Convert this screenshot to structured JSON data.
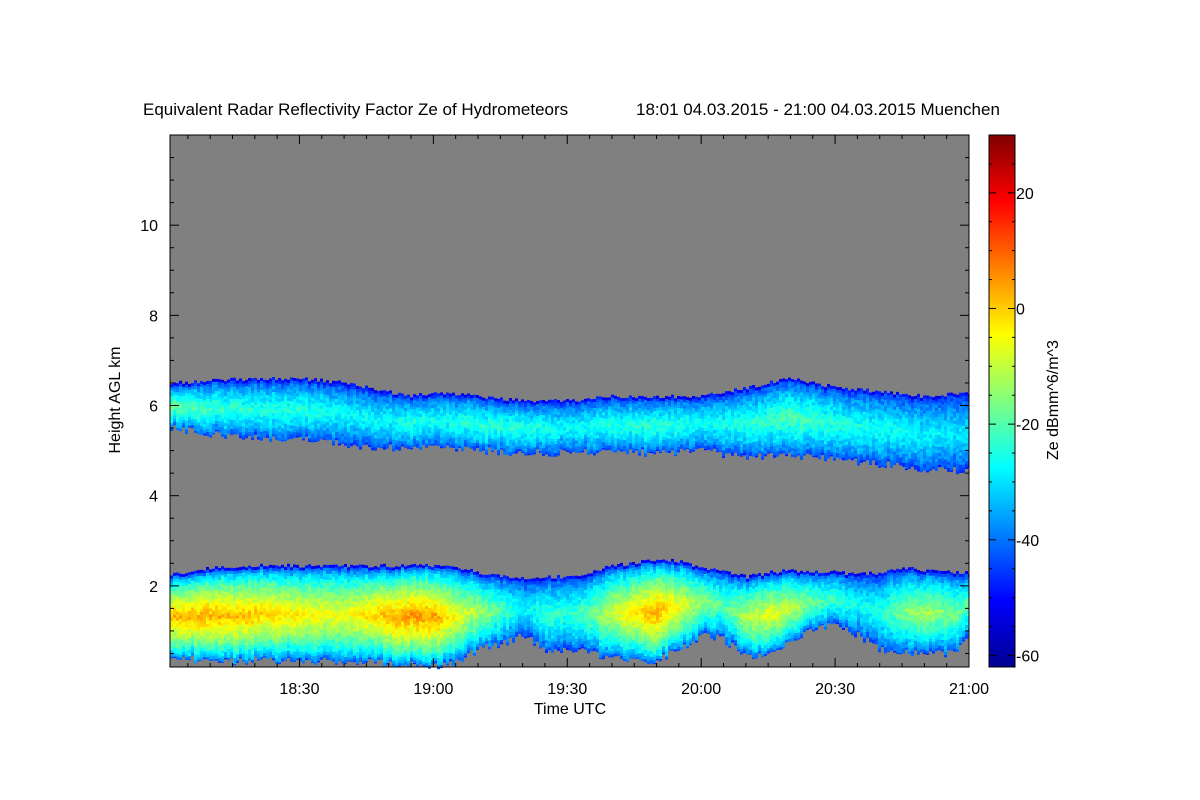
{
  "chart_data": {
    "type": "heatmap",
    "title": "Equivalent Radar Reflectivity Factor Ze of Hydrometeors",
    "subtitle": "18:01 04.03.2015 - 21:00 04.03.2015 Muenchen",
    "xlabel": "Time UTC",
    "ylabel": "Height AGL km",
    "colorbar_label": "Ze dBmm^6/m^3",
    "x_range_minutes": [
      1081,
      1260
    ],
    "y_range_km": [
      0.2,
      12.0
    ],
    "x_ticks": [
      {
        "minutes": 1110,
        "label": "18:30"
      },
      {
        "minutes": 1140,
        "label": "19:00"
      },
      {
        "minutes": 1170,
        "label": "19:30"
      },
      {
        "minutes": 1200,
        "label": "20:00"
      },
      {
        "minutes": 1230,
        "label": "20:30"
      },
      {
        "minutes": 1260,
        "label": "21:00"
      }
    ],
    "y_ticks": [
      {
        "value": 2,
        "label": "2"
      },
      {
        "value": 4,
        "label": "4"
      },
      {
        "value": 6,
        "label": "6"
      },
      {
        "value": 8,
        "label": "8"
      },
      {
        "value": 10,
        "label": "10"
      }
    ],
    "colorbar_range": [
      -62,
      30
    ],
    "colorbar_ticks": [
      {
        "value": 20,
        "label": "20"
      },
      {
        "value": 0,
        "label": "0"
      },
      {
        "value": -20,
        "label": "-20"
      },
      {
        "value": -40,
        "label": "-40"
      },
      {
        "value": -60,
        "label": "-60"
      }
    ],
    "colormap": "jet",
    "background_color": "#808080",
    "layers": [
      {
        "name": "upper",
        "time_minutes": [
          1081,
          1090,
          1100,
          1110,
          1120,
          1130,
          1135,
          1140,
          1150,
          1160,
          1170,
          1180,
          1190,
          1200,
          1210,
          1220,
          1225,
          1230,
          1240,
          1250,
          1260
        ],
        "top_km": [
          6.5,
          6.55,
          6.6,
          6.6,
          6.5,
          6.3,
          6.2,
          6.3,
          6.2,
          6.1,
          6.1,
          6.2,
          6.2,
          6.2,
          6.4,
          6.6,
          6.5,
          6.4,
          6.3,
          6.2,
          6.3
        ],
        "base_km": [
          5.5,
          5.35,
          5.3,
          5.25,
          5.15,
          5.05,
          5.05,
          5.1,
          5.0,
          4.95,
          4.95,
          4.95,
          4.95,
          5.0,
          4.85,
          4.9,
          4.85,
          4.8,
          4.7,
          4.6,
          4.55
        ],
        "core_dbz": [
          -18,
          -22,
          -24,
          -24,
          -27,
          -27,
          -24,
          -26,
          -23,
          -24,
          -27,
          -24,
          -23,
          -26,
          -24,
          -20,
          -22,
          -24,
          -26,
          -28,
          -30
        ]
      },
      {
        "name": "lower",
        "time_minutes": [
          1081,
          1090,
          1100,
          1110,
          1120,
          1130,
          1135,
          1140,
          1145,
          1150,
          1155,
          1160,
          1165,
          1170,
          1175,
          1180,
          1185,
          1190,
          1195,
          1200,
          1205,
          1210,
          1215,
          1220,
          1225,
          1230,
          1235,
          1240,
          1245,
          1250,
          1255,
          1260
        ],
        "top_km": [
          2.25,
          2.4,
          2.45,
          2.45,
          2.45,
          2.45,
          2.45,
          2.45,
          2.4,
          2.3,
          2.2,
          2.15,
          2.2,
          2.2,
          2.3,
          2.45,
          2.5,
          2.6,
          2.55,
          2.4,
          2.3,
          2.2,
          2.3,
          2.35,
          2.3,
          2.3,
          2.25,
          2.3,
          2.4,
          2.35,
          2.3,
          2.3
        ],
        "base_km": [
          0.45,
          0.3,
          0.35,
          0.35,
          0.3,
          0.3,
          0.25,
          0.2,
          0.3,
          0.6,
          0.7,
          0.9,
          0.6,
          0.6,
          0.5,
          0.4,
          0.3,
          0.35,
          0.6,
          0.9,
          0.8,
          0.4,
          0.5,
          0.8,
          1.0,
          1.2,
          0.9,
          0.6,
          0.5,
          0.5,
          0.5,
          0.8
        ],
        "core_dbz": [
          2,
          3,
          1,
          -3,
          -6,
          3,
          5,
          4,
          -6,
          -12,
          -20,
          -28,
          -22,
          -24,
          -18,
          -8,
          -2,
          4,
          -6,
          -14,
          -20,
          -10,
          -6,
          -10,
          -18,
          -22,
          -26,
          -24,
          -16,
          -12,
          -16,
          -20
        ]
      }
    ]
  }
}
